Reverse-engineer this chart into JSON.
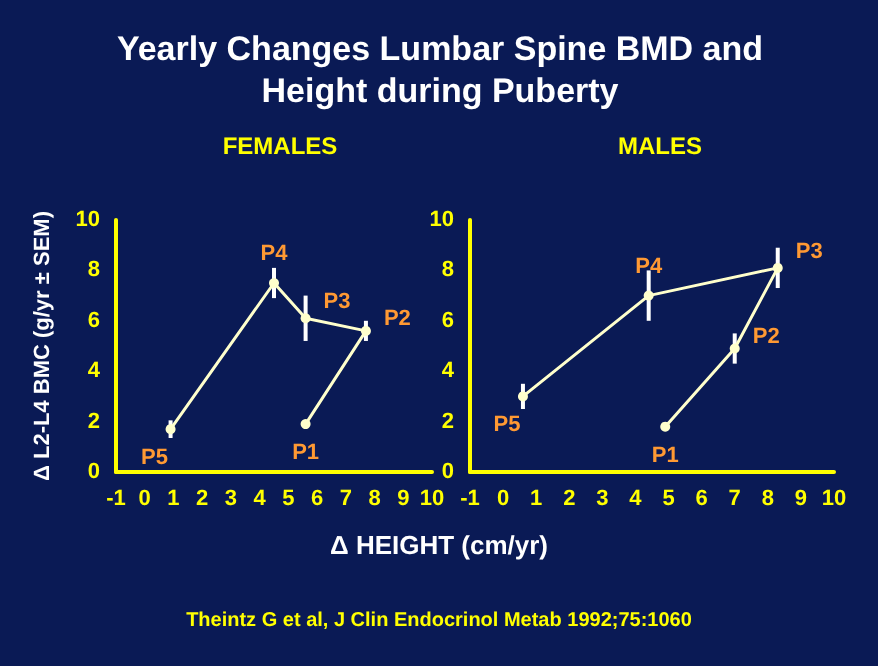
{
  "chart_data": [
    {
      "type": "line",
      "title": "Yearly Changes Lumbar Spine BMD and Height during Puberty",
      "subtitle": "FEMALES",
      "xlabel": "Δ HEIGHT (cm/yr)",
      "ylabel": "Δ L2-L4 BMC (g/yr ± SEM)",
      "xlim": [
        -1,
        10
      ],
      "xticks": [
        -1,
        0,
        1,
        2,
        3,
        4,
        5,
        6,
        7,
        8,
        9,
        10
      ],
      "ylim": [
        0,
        10
      ],
      "yticks": [
        0,
        2,
        4,
        6,
        8,
        10
      ],
      "grid": false,
      "marker": "circle",
      "line_style": "solid",
      "series": [
        {
          "color": "#ffffcc",
          "x": [
            5.6,
            7.7,
            5.6,
            4.5,
            0.9
          ],
          "values": [
            1.9,
            5.6,
            6.1,
            7.5,
            1.7
          ],
          "errors": [
            null,
            0.4,
            0.9,
            0.6,
            0.35
          ]
        }
      ],
      "annotations": [
        {
          "text": "P1",
          "x": 5.6,
          "y": 1.9
        },
        {
          "text": "P2",
          "x": 7.7,
          "y": 5.6
        },
        {
          "text": "P3",
          "x": 5.6,
          "y": 6.1
        },
        {
          "text": "P4",
          "x": 4.5,
          "y": 7.5
        },
        {
          "text": "P5",
          "x": 0.9,
          "y": 1.7
        },
        "Theintz G et al, J Clin Endocrinol Metab 1992;75:1060"
      ]
    },
    {
      "type": "line",
      "title": "MALES",
      "xlim": [
        -1,
        10
      ],
      "xticks": [
        -1,
        0,
        1,
        2,
        3,
        4,
        5,
        6,
        7,
        8,
        9,
        10
      ],
      "ylim": [
        0,
        10
      ],
      "yticks": [
        0,
        2,
        4,
        6,
        8,
        10
      ],
      "grid": false,
      "marker": "circle",
      "line_style": "solid",
      "series": [
        {
          "color": "#ffffcc",
          "x": [
            4.9,
            7.0,
            8.3,
            4.4,
            0.6
          ],
          "values": [
            1.8,
            4.9,
            8.1,
            7.0,
            3.0
          ],
          "errors": [
            null,
            0.6,
            0.8,
            1.0,
            0.5
          ]
        }
      ],
      "annotations": [
        {
          "text": "P1",
          "x": 4.9,
          "y": 1.8
        },
        {
          "text": "P2",
          "x": 7.0,
          "y": 4.9
        },
        {
          "text": "P3",
          "x": 8.3,
          "y": 8.1
        },
        {
          "text": "P4",
          "x": 4.4,
          "y": 7.0
        },
        {
          "text": "P5",
          "x": 0.6,
          "y": 3.0
        }
      ]
    }
  ]
}
